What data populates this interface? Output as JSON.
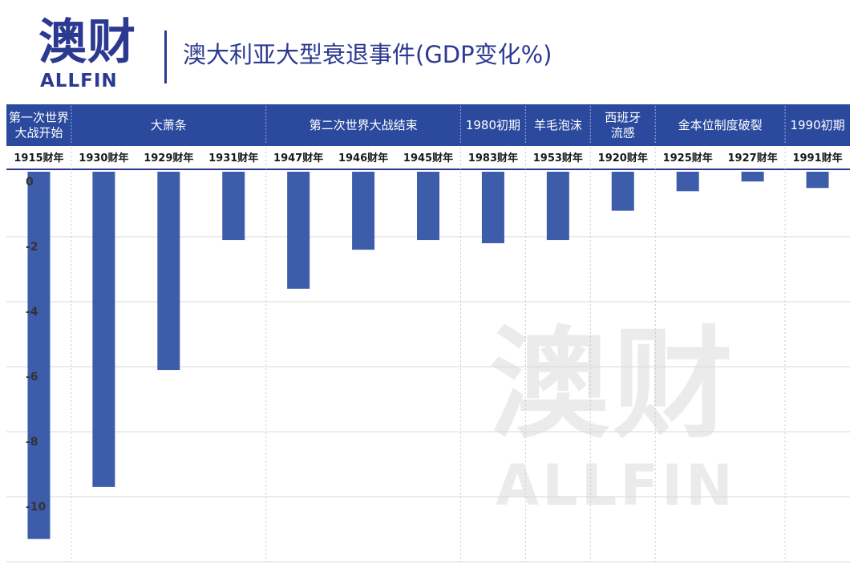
{
  "brand": {
    "name_cn": "澳财",
    "name_en": "ALLFIN"
  },
  "colors": {
    "brand": "#2b3990",
    "bar": "#3d5caa",
    "header_band": "#2b4a9e",
    "grid": "#d9d9d9",
    "watermark": "#ebebeb"
  },
  "chart_data": {
    "type": "bar",
    "title": "澳大利亚大型衰退事件(GDP变化%)",
    "xlabel": "",
    "ylabel": "",
    "ylim": [
      -12,
      0
    ],
    "yticks": [
      0,
      -2,
      -4,
      -6,
      -8,
      -10
    ],
    "grid": true,
    "legend": "none",
    "groups": [
      {
        "label": "第一次世界大战开始",
        "lines": [
          "第一次世界",
          "大战开始"
        ],
        "categories": [
          "1915财年"
        ],
        "values": [
          -11.3
        ]
      },
      {
        "label": "大萧条",
        "lines": [
          "大萧条"
        ],
        "categories": [
          "1930财年",
          "1929财年",
          "1931财年"
        ],
        "values": [
          -9.7,
          -6.1,
          -2.1
        ]
      },
      {
        "label": "第二次世界大战结束",
        "lines": [
          "第二次世界大战结束"
        ],
        "categories": [
          "1947财年",
          "1946财年",
          "1945财年"
        ],
        "values": [
          -3.6,
          -2.4,
          -2.1
        ]
      },
      {
        "label": "1980初期",
        "lines": [
          "1980初期"
        ],
        "categories": [
          "1983财年"
        ],
        "values": [
          -2.2
        ]
      },
      {
        "label": "羊毛泡沫",
        "lines": [
          "羊毛泡沫"
        ],
        "categories": [
          "1953财年"
        ],
        "values": [
          -2.1
        ]
      },
      {
        "label": "西班牙流感",
        "lines": [
          "西班牙",
          "流感"
        ],
        "categories": [
          "1920财年"
        ],
        "values": [
          -1.2
        ]
      },
      {
        "label": "金本位制度破裂",
        "lines": [
          "金本位制度破裂"
        ],
        "categories": [
          "1925财年",
          "1927财年"
        ],
        "values": [
          -0.6,
          -0.3
        ]
      },
      {
        "label": "1990初期",
        "lines": [
          "1990初期"
        ],
        "categories": [
          "1991财年"
        ],
        "values": [
          -0.5
        ]
      }
    ]
  }
}
